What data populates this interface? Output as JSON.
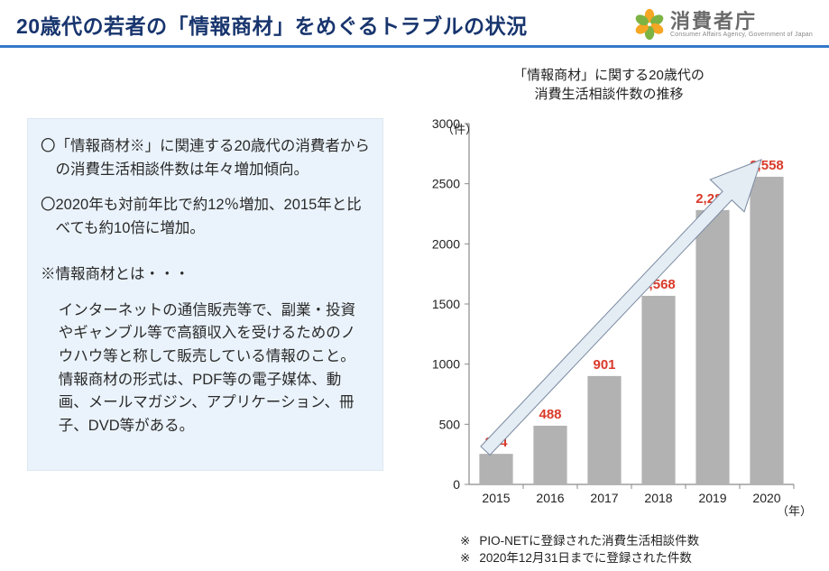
{
  "header": {
    "title": "20歳代の若者の「情報商材」をめぐるトラブルの状況",
    "logo_text": "消費者庁",
    "logo_sub": "Consumer Affairs Agency, Government of Japan",
    "logo_colors": {
      "orange": "#f5a623",
      "green": "#7cb342"
    }
  },
  "panel": {
    "bullet1": "「情報商材※」に関連する20歳代の消費者からの消費生活相談件数は年々増加傾向。",
    "bullet2": "2020年も対前年比で約12％増加、2015年と比べても約10倍に増加。",
    "footnote_label": "※情報商材とは・・・",
    "footnote_body": "インターネットの通信販売等で、副業・投資やギャンブル等で高額収入を受けるためのノウハウ等と称して販売している情報のこと。情報商材の形式は、PDF等の電子媒体、動画、メールマガジン、アプリケーション、冊子、DVD等がある。",
    "background": "#eaf3fb"
  },
  "chart": {
    "type": "bar",
    "title_line1": "「情報商材」に関する20歳代の",
    "title_line2": "消費生活相談件数の推移",
    "y_unit": "（件）",
    "x_unit": "（年）",
    "categories": [
      "2015",
      "2016",
      "2017",
      "2018",
      "2019",
      "2020"
    ],
    "values": [
      254,
      488,
      901,
      1568,
      2281,
      2558
    ],
    "value_labels": [
      "254",
      "488",
      "901",
      "1,568",
      "2,281",
      "2,558"
    ],
    "ylim": [
      0,
      3000
    ],
    "ytick_step": 500,
    "bar_color": "#b2b2b2",
    "label_color": "#d93a2a",
    "axis_color": "#8a8a8a",
    "tick_font_size": 14,
    "label_font_size": 15,
    "arrow_fill": "#e4ecf4",
    "arrow_stroke": "#7a8aa0",
    "footnote1": "PIO-NETに登録された消費生活相談件数",
    "footnote2": "2020年12月31日までに登録された件数",
    "footnote_sym": "※"
  }
}
